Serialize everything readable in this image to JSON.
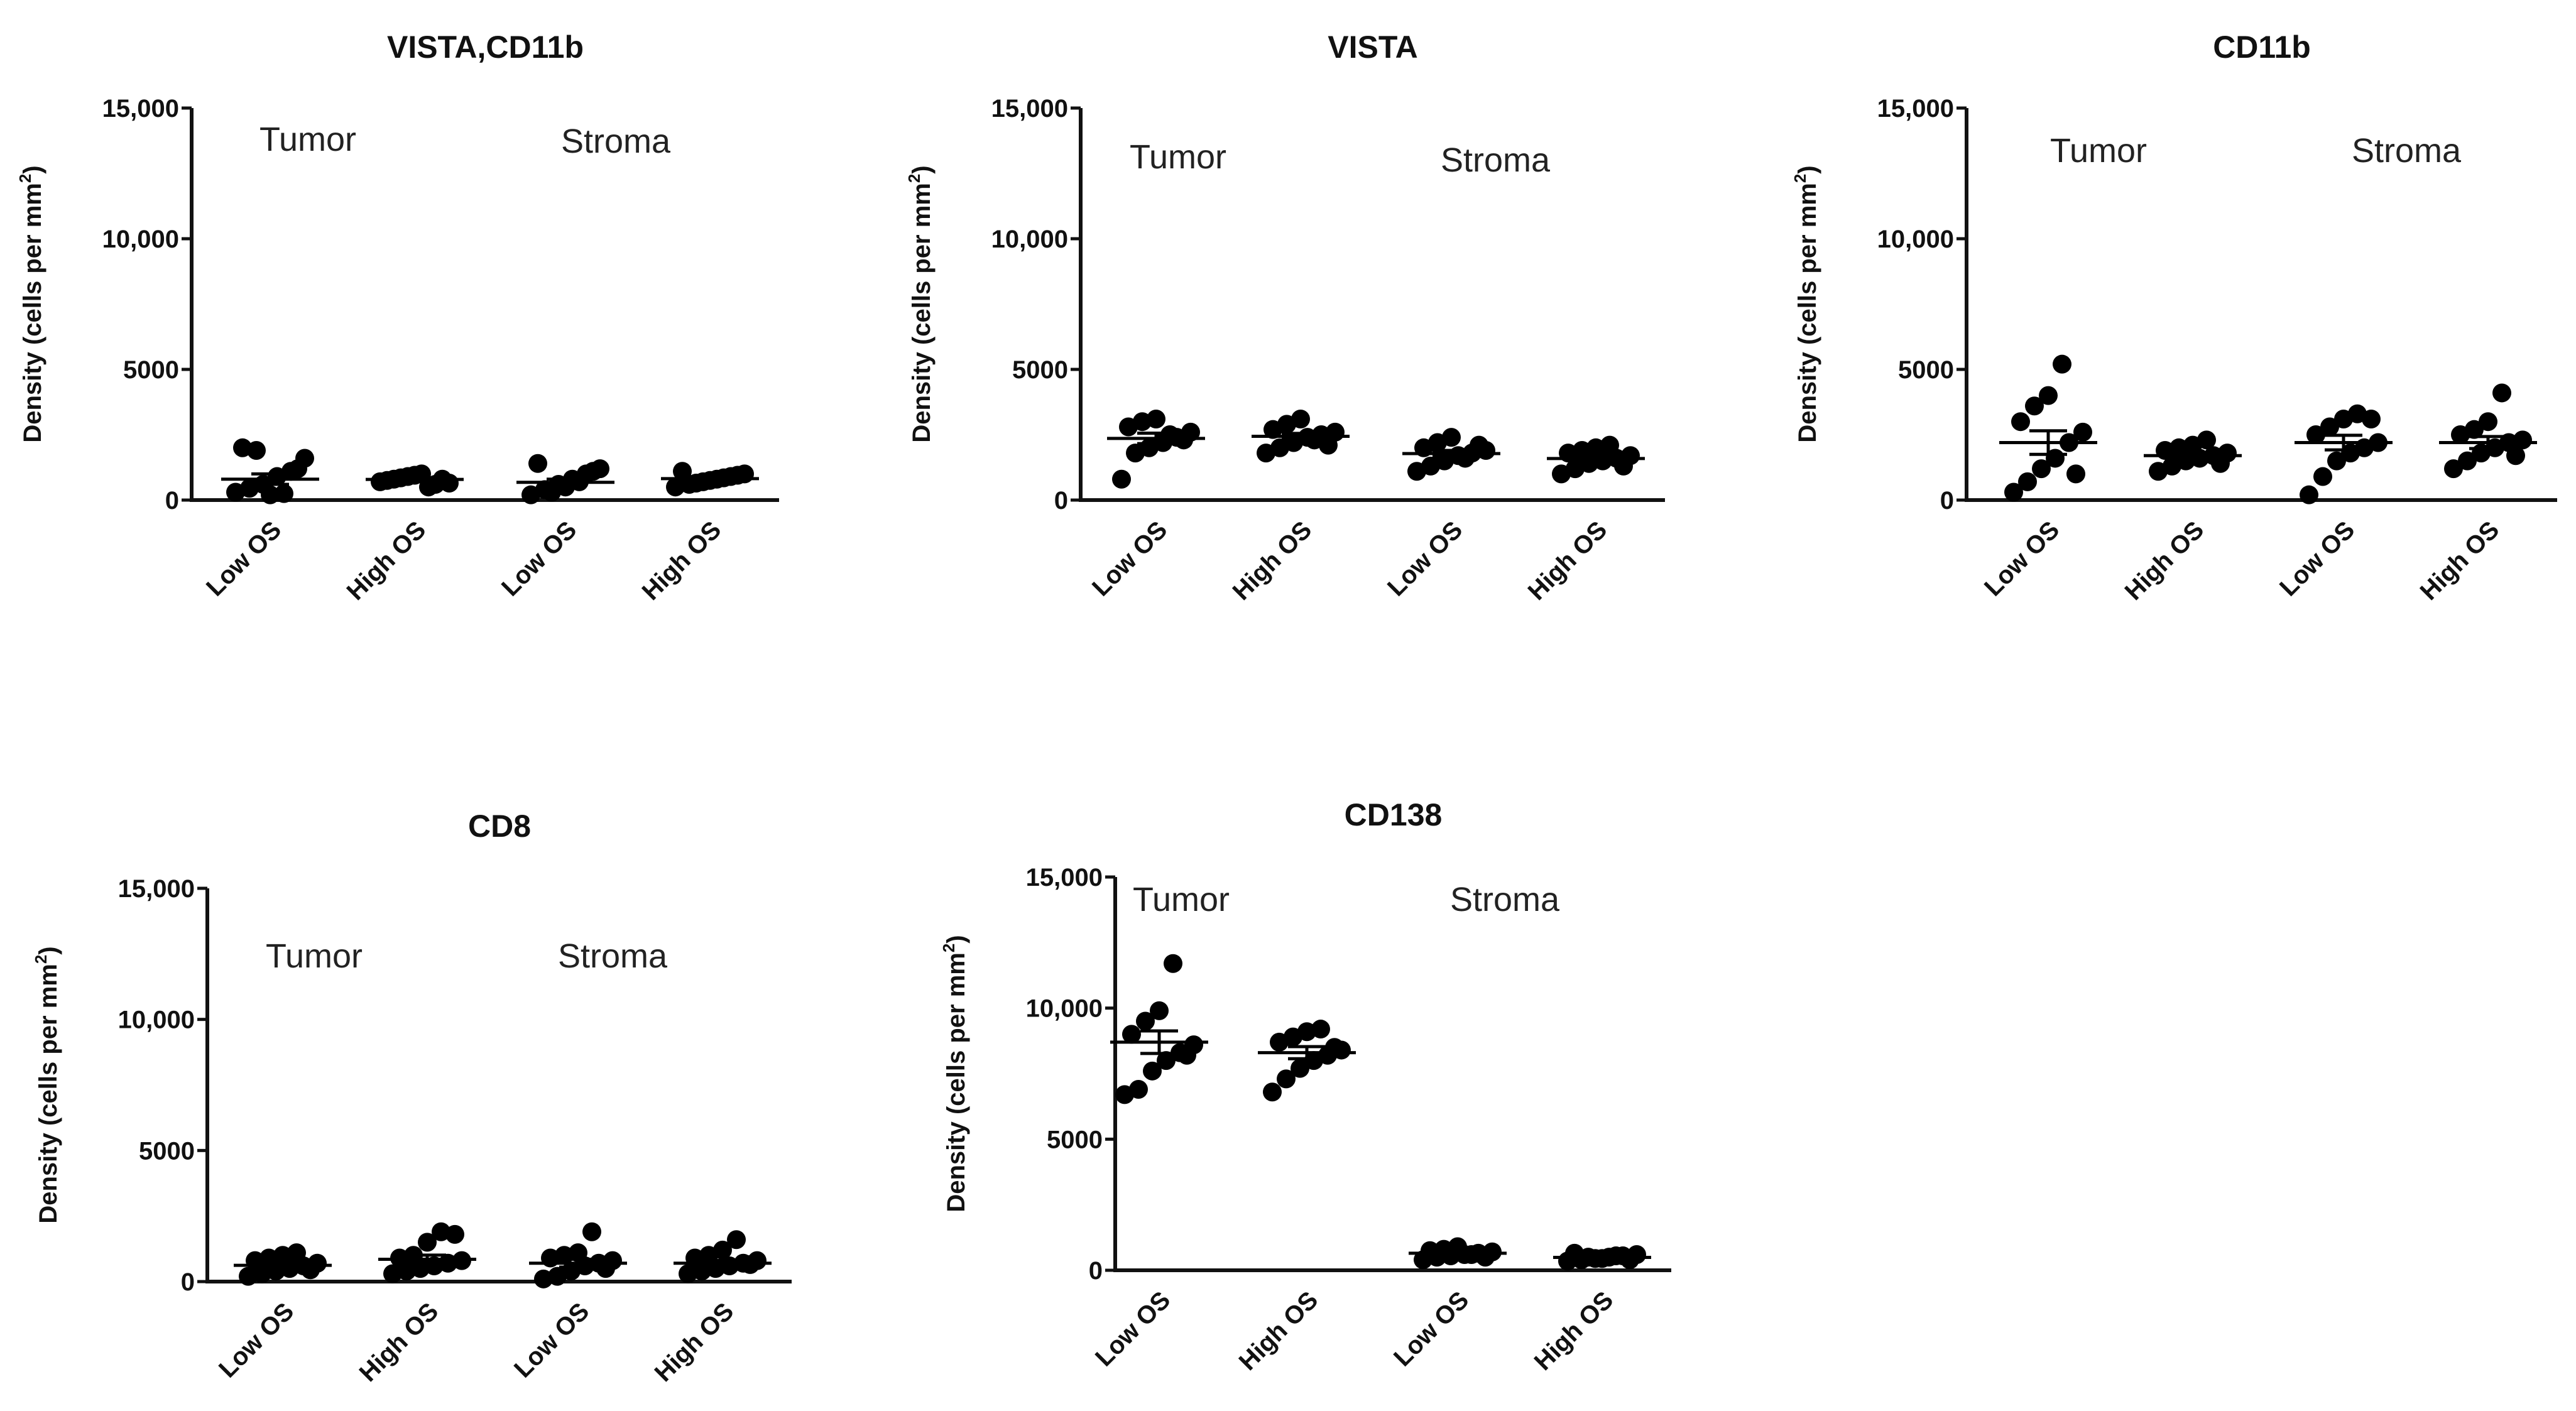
{
  "chart_data": [
    {
      "type": "scatter",
      "title": "VISTA,CD11b",
      "ylabel": "Density (cells per mm",
      "ylabel_sup": "2",
      "ylabel_close": ")",
      "ylim": [
        0,
        15000
      ],
      "yticks": [
        0,
        5000,
        10000,
        15000
      ],
      "ytick_labels": [
        "0",
        "5000",
        "10,000",
        "15,000"
      ],
      "categories": [
        "Low OS",
        "High OS",
        "Low OS",
        "High OS"
      ],
      "region_labels": [
        "Tumor",
        "Stroma"
      ],
      "groups": [
        {
          "name": "Tumor Low OS",
          "values": [
            300,
            450,
            600,
            900,
            1100,
            1600,
            2000,
            1900,
            200,
            250,
            1200
          ],
          "mean": 800,
          "sem": 200
        },
        {
          "name": "Tumor High OS",
          "values": [
            700,
            800,
            900,
            1000,
            600,
            650,
            750,
            850,
            950,
            500,
            800
          ],
          "mean": 790,
          "sem": 60
        },
        {
          "name": "Stroma Low OS",
          "values": [
            200,
            400,
            600,
            800,
            1000,
            1200,
            1400,
            300,
            500,
            700,
            1100
          ],
          "mean": 680,
          "sem": 120
        },
        {
          "name": "Stroma High OS",
          "values": [
            500,
            600,
            700,
            800,
            900,
            1000,
            1100,
            650,
            750,
            850,
            950
          ],
          "mean": 820,
          "sem": 60
        }
      ]
    },
    {
      "type": "scatter",
      "title": "VISTA",
      "ylabel": "Density (cells per mm",
      "ylabel_sup": "2",
      "ylabel_close": ")",
      "ylim": [
        0,
        15000
      ],
      "yticks": [
        0,
        5000,
        10000,
        15000
      ],
      "ytick_labels": [
        "0",
        "5000",
        "10,000",
        "15,000"
      ],
      "categories": [
        "Low OS",
        "High OS",
        "Low OS",
        "High OS"
      ],
      "region_labels": [
        "Tumor",
        "Stroma"
      ],
      "groups": [
        {
          "name": "Tumor Low OS",
          "values": [
            800,
            1800,
            2000,
            2200,
            2400,
            2600,
            2800,
            3000,
            3100,
            2500,
            2300
          ],
          "mean": 2360,
          "sem": 200
        },
        {
          "name": "Tumor High OS",
          "values": [
            1800,
            2000,
            2200,
            2400,
            2500,
            2600,
            2700,
            2900,
            3100,
            2300,
            2100
          ],
          "mean": 2440,
          "sem": 110
        },
        {
          "name": "Stroma Low OS",
          "values": [
            1100,
            1300,
            1500,
            1700,
            1800,
            1900,
            2000,
            2200,
            2400,
            1600,
            2100
          ],
          "mean": 1780,
          "sem": 120
        },
        {
          "name": "Stroma High OS",
          "values": [
            1000,
            1200,
            1400,
            1500,
            1600,
            1700,
            1800,
            1900,
            2000,
            2100,
            1300
          ],
          "mean": 1590,
          "sem": 100
        }
      ]
    },
    {
      "type": "scatter",
      "title": "CD11b",
      "ylabel": "Density (cells per mm",
      "ylabel_sup": "2",
      "ylabel_close": ")",
      "ylim": [
        0,
        15000
      ],
      "yticks": [
        0,
        5000,
        10000,
        15000
      ],
      "ytick_labels": [
        "0",
        "5000",
        "10,000",
        "15,000"
      ],
      "categories": [
        "Low OS",
        "High OS",
        "Low OS",
        "High OS"
      ],
      "region_labels": [
        "Tumor",
        "Stroma"
      ],
      "groups": [
        {
          "name": "Tumor Low OS",
          "values": [
            300,
            700,
            1200,
            1600,
            2200,
            2600,
            3000,
            3600,
            4000,
            5200,
            1000
          ],
          "mean": 2200,
          "sem": 450
        },
        {
          "name": "Tumor High OS",
          "values": [
            1100,
            1300,
            1500,
            1600,
            1700,
            1800,
            1900,
            2000,
            2100,
            2300,
            1400
          ],
          "mean": 1700,
          "sem": 100
        },
        {
          "name": "Stroma Low OS",
          "values": [
            200,
            900,
            1500,
            1800,
            2000,
            2200,
            2500,
            2800,
            3100,
            3300,
            3100
          ],
          "mean": 2200,
          "sem": 280
        },
        {
          "name": "Stroma High OS",
          "values": [
            1200,
            1500,
            1800,
            2000,
            2200,
            2300,
            2500,
            2700,
            3000,
            4100,
            1700
          ],
          "mean": 2200,
          "sem": 230
        }
      ]
    },
    {
      "type": "scatter",
      "title": "CD8",
      "ylabel": "Density (cells per mm",
      "ylabel_sup": "2",
      "ylabel_close": ")",
      "ylim": [
        0,
        15000
      ],
      "yticks": [
        0,
        5000,
        10000,
        15000
      ],
      "ytick_labels": [
        "0",
        "5000",
        "10,000",
        "15,000"
      ],
      "categories": [
        "Low OS",
        "High OS",
        "Low OS",
        "High OS"
      ],
      "region_labels": [
        "Tumor",
        "Stroma"
      ],
      "groups": [
        {
          "name": "Tumor Low OS",
          "values": [
            200,
            300,
            400,
            500,
            600,
            700,
            800,
            900,
            1000,
            1100,
            450
          ],
          "mean": 620,
          "sem": 80
        },
        {
          "name": "Tumor High OS",
          "values": [
            300,
            400,
            500,
            600,
            700,
            800,
            900,
            1000,
            1500,
            1900,
            1800
          ],
          "mean": 850,
          "sem": 160
        },
        {
          "name": "Stroma Low OS",
          "values": [
            100,
            200,
            400,
            600,
            700,
            800,
            900,
            1000,
            1100,
            1900,
            500
          ],
          "mean": 700,
          "sem": 150
        },
        {
          "name": "Stroma High OS",
          "values": [
            300,
            400,
            500,
            600,
            700,
            800,
            900,
            1000,
            1200,
            1600,
            650
          ],
          "mean": 700,
          "sem": 110
        }
      ]
    },
    {
      "type": "scatter",
      "title": "CD138",
      "ylabel": "Density (cells per mm",
      "ylabel_sup": "2",
      "ylabel_close": ")",
      "ylim": [
        0,
        15000
      ],
      "yticks": [
        0,
        5000,
        10000,
        15000
      ],
      "ytick_labels": [
        "0",
        "5000",
        "10,000",
        "15,000"
      ],
      "categories": [
        "Low OS",
        "High OS",
        "Low OS",
        "High OS"
      ],
      "region_labels": [
        "Tumor",
        "Stroma"
      ],
      "groups": [
        {
          "name": "Tumor Low OS",
          "values": [
            6700,
            6900,
            7600,
            8000,
            8300,
            8600,
            9000,
            9500,
            9900,
            11700,
            8200
          ],
          "mean": 8700,
          "sem": 430
        },
        {
          "name": "Tumor High OS",
          "values": [
            6800,
            7300,
            7700,
            8000,
            8200,
            8400,
            8700,
            8900,
            9100,
            9200,
            8500
          ],
          "mean": 8300,
          "sem": 230
        },
        {
          "name": "Stroma Low OS",
          "values": [
            400,
            500,
            550,
            600,
            650,
            700,
            750,
            800,
            900,
            600,
            500
          ],
          "mean": 650,
          "sem": 45
        },
        {
          "name": "Stroma High OS",
          "values": [
            350,
            400,
            450,
            500,
            550,
            600,
            650,
            500,
            450,
            550,
            400
          ],
          "mean": 490,
          "sem": 30
        }
      ]
    }
  ]
}
